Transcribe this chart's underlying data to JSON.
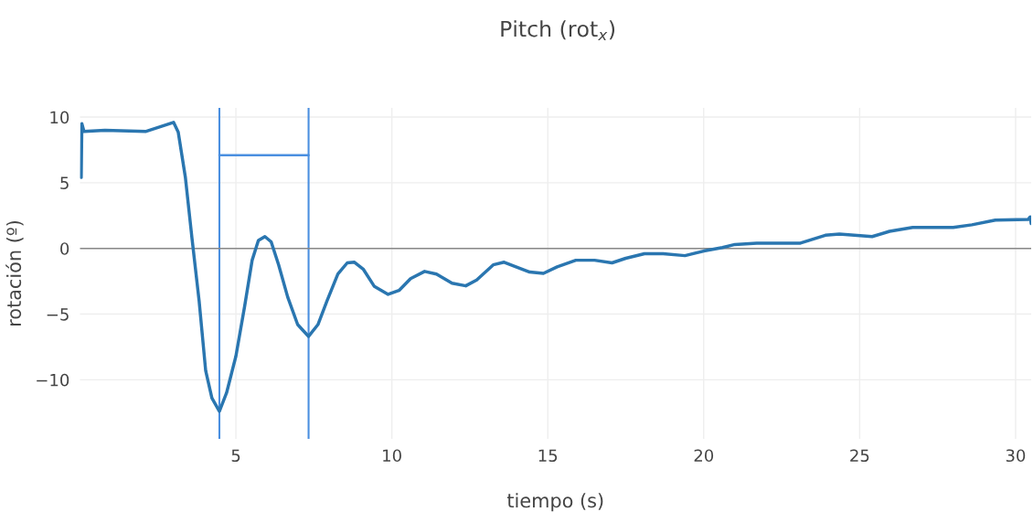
{
  "chart_data": {
    "type": "line",
    "title": "Pitch (rot$_{x}$)",
    "xlabel": "tiempo (s)",
    "ylabel": "rotación (º)",
    "xlim": [
      0,
      30.5
    ],
    "ylim": [
      -14.5,
      10.7
    ],
    "xticks": [
      5,
      10,
      15,
      20,
      25,
      30
    ],
    "yticks": [
      -10,
      -5,
      0,
      5,
      10
    ],
    "grid": true,
    "series": [
      {
        "color": "#2a76b0",
        "x": [
          0.04,
          0.06,
          0.13,
          0.8,
          2.1,
          3.0,
          3.15,
          3.38,
          3.59,
          3.82,
          4.03,
          4.23,
          4.47,
          4.7,
          5.0,
          5.28,
          5.52,
          5.72,
          5.93,
          6.13,
          6.37,
          6.66,
          6.98,
          7.33,
          7.63,
          7.92,
          8.27,
          8.57,
          8.8,
          9.09,
          9.44,
          9.88,
          10.23,
          10.6,
          11.05,
          11.43,
          11.93,
          12.37,
          12.72,
          13.25,
          13.6,
          13.98,
          14.42,
          14.86,
          15.3,
          15.9,
          16.5,
          17.06,
          17.5,
          18.1,
          18.7,
          19.4,
          20.0,
          20.6,
          21.0,
          21.7,
          23.1,
          23.9,
          24.35,
          25.4,
          25.96,
          26.7,
          28.0,
          28.6,
          29.35,
          30.4,
          30.47,
          30.5
        ],
        "values": [
          5.4,
          9.5,
          8.9,
          9.0,
          8.9,
          9.6,
          8.85,
          5.4,
          0.8,
          -4.0,
          -9.3,
          -11.4,
          -12.4,
          -11.0,
          -8.2,
          -4.4,
          -0.9,
          0.6,
          0.9,
          0.5,
          -1.25,
          -3.7,
          -5.8,
          -6.7,
          -5.8,
          -4.0,
          -1.95,
          -1.1,
          -1.05,
          -1.6,
          -2.9,
          -3.5,
          -3.2,
          -2.3,
          -1.75,
          -1.95,
          -2.65,
          -2.85,
          -2.4,
          -1.25,
          -1.05,
          -1.4,
          -1.8,
          -1.9,
          -1.4,
          -0.9,
          -0.9,
          -1.1,
          -0.75,
          -0.4,
          -0.4,
          -0.55,
          -0.2,
          0.07,
          0.3,
          0.4,
          0.4,
          1.0,
          1.1,
          0.9,
          1.3,
          1.6,
          1.6,
          1.8,
          2.15,
          2.2,
          2.4,
          1.9
        ]
      },
      {
        "color": "#4a8fe0",
        "x": [
          4.47,
          7.33
        ],
        "values": [
          7.1,
          7.1
        ]
      }
    ],
    "ref_lines": [
      {
        "axis": "x",
        "value": 4.47,
        "color": "#4a8fe0"
      },
      {
        "axis": "x",
        "value": 7.33,
        "color": "#4a8fe0"
      },
      {
        "axis": "y",
        "value": 0,
        "color": "#888888"
      }
    ]
  }
}
